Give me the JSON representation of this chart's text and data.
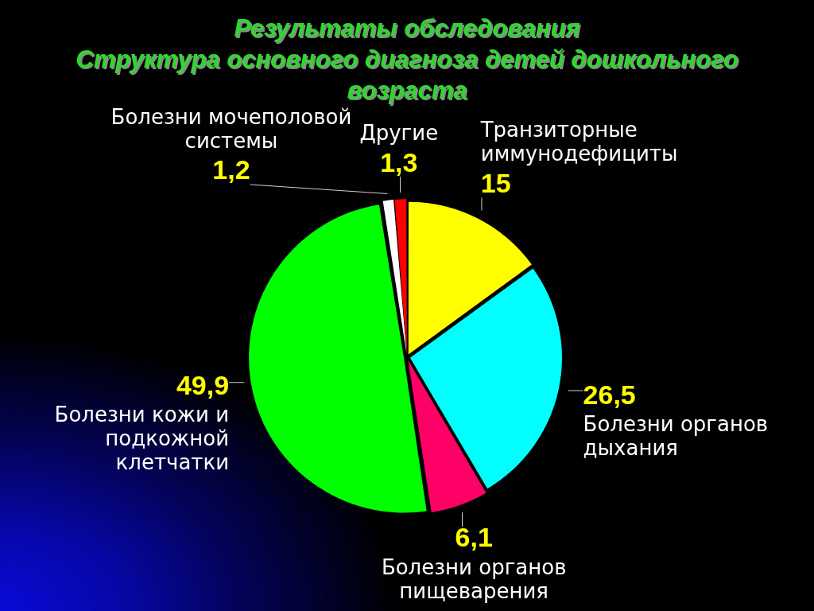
{
  "chart_data": {
    "type": "pie",
    "title": "Результаты обследования",
    "subtitle": "Структура основного диагноза детей дошкольного возраста",
    "categories": [
      "Транзиторные иммунодефициты",
      "Болезни органов дыхания",
      "Болезни органов пищеварения",
      "Болезни кожи и подкожной клетчатки",
      "Болезни мочеполовой системы",
      "Другие"
    ],
    "values": [
      15,
      26.5,
      6.1,
      49.9,
      1.2,
      1.3
    ],
    "colors": [
      "#ffff00",
      "#00ffff",
      "#ff0066",
      "#00ff00",
      "#ffffff",
      "#ff0000"
    ],
    "value_labels": [
      "15",
      "26,5",
      "6,1",
      "49,9",
      "1,2",
      "1,3"
    ]
  }
}
